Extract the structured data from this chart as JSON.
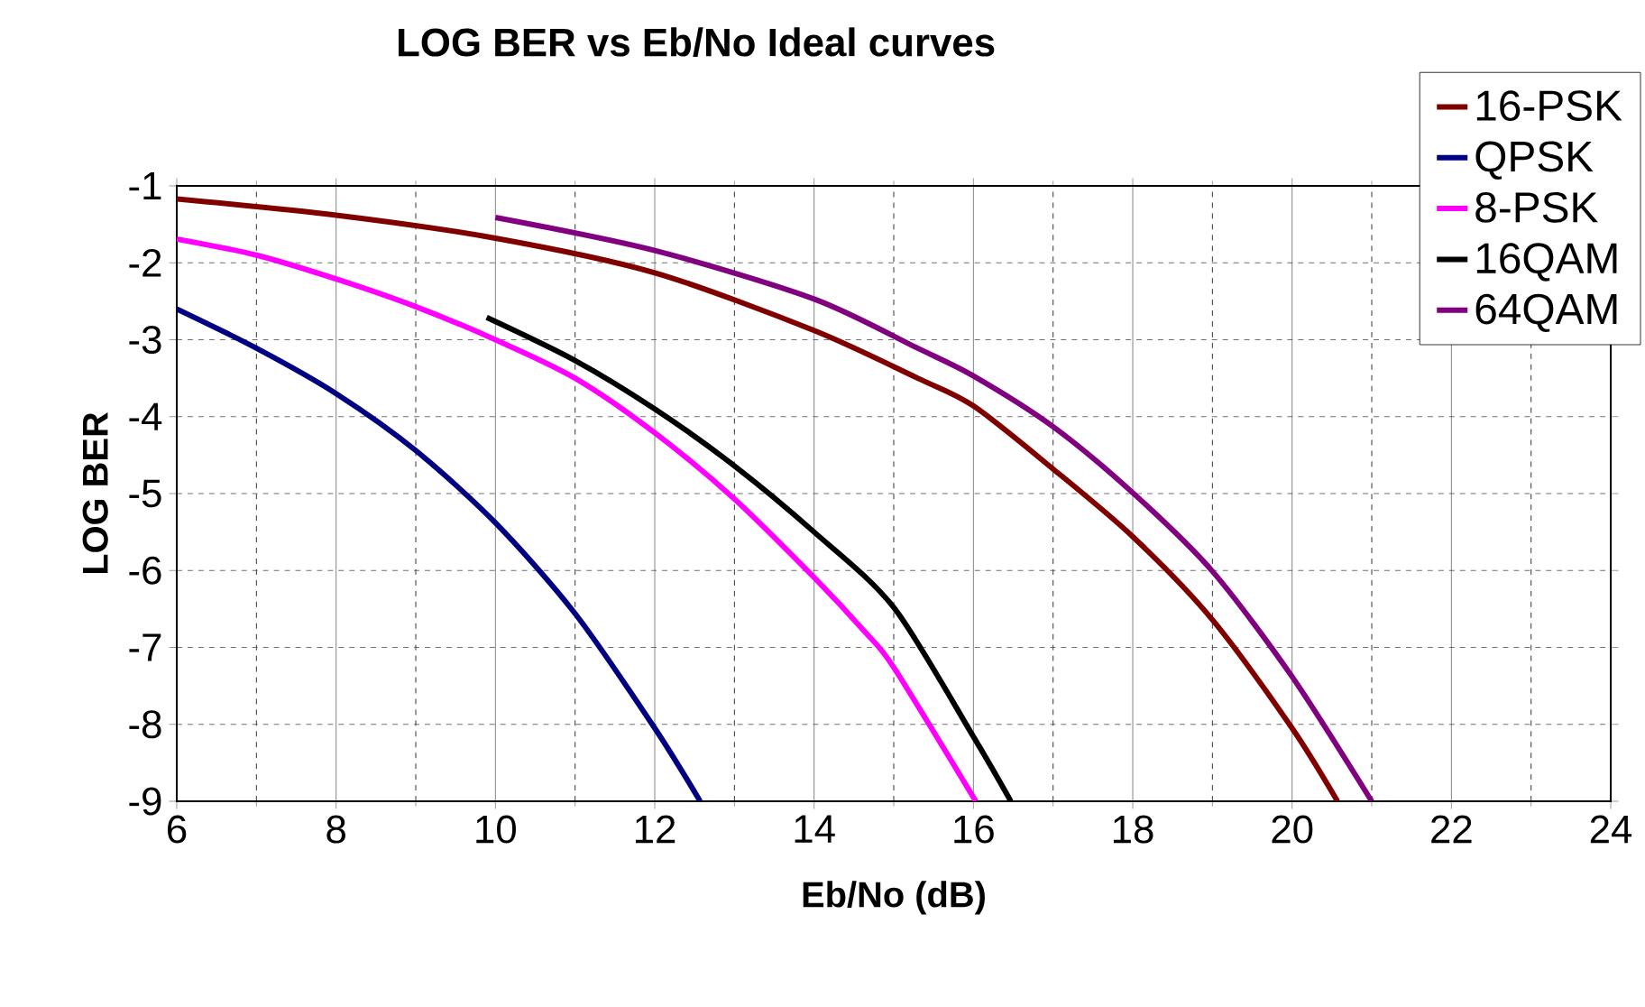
{
  "chart_data": {
    "type": "line",
    "title": "LOG BER vs Eb/No Ideal curves",
    "xlabel": "Eb/No (dB)",
    "ylabel": "LOG BER",
    "xlim": [
      6,
      24
    ],
    "xticks": [
      6,
      8,
      10,
      12,
      14,
      16,
      18,
      20,
      22,
      24
    ],
    "ylim": [
      -9,
      -1
    ],
    "yticks": [
      -9,
      -8,
      -7,
      -6,
      -5,
      -4,
      -3,
      -2,
      -1
    ],
    "grid": true,
    "legend": "top right",
    "marker": "none",
    "line_style": "solid",
    "series": [
      {
        "name": "16-PSK",
        "color": "#800000",
        "x": [
          6,
          8,
          10,
          12,
          14,
          15.3,
          16,
          17,
          18,
          19,
          20,
          20.57
        ],
        "values": [
          -1.17,
          -1.38,
          -1.68,
          -2.13,
          -2.88,
          -3.5,
          -3.86,
          -4.68,
          -5.56,
          -6.64,
          -8.05,
          -9
        ]
      },
      {
        "name": "QPSK",
        "color": "#000080",
        "x": [
          6,
          7,
          8,
          9,
          10,
          11,
          12,
          12.57
        ],
        "values": [
          -2.6,
          -3.11,
          -3.7,
          -4.44,
          -5.38,
          -6.56,
          -8.05,
          -9
        ]
      },
      {
        "name": "8-PSK",
        "color": "#ff00ff",
        "x": [
          6,
          7,
          8,
          9,
          10,
          11,
          12,
          13,
          14,
          14.63,
          15,
          16.03
        ],
        "values": [
          -1.69,
          -1.9,
          -2.21,
          -2.57,
          -3.0,
          -3.5,
          -4.21,
          -5.07,
          -6.09,
          -6.79,
          -7.26,
          -9
        ]
      },
      {
        "name": "16QAM",
        "color": "#000000",
        "x": [
          9.89,
          11,
          12,
          13,
          14,
          15,
          16,
          16.47
        ],
        "values": [
          -2.71,
          -3.27,
          -3.9,
          -4.64,
          -5.5,
          -6.48,
          -8.16,
          -9
        ]
      },
      {
        "name": "64QAM",
        "color": "#800080",
        "x": [
          10,
          12,
          14,
          15.3,
          16,
          17,
          18,
          19,
          20,
          21.0
        ],
        "values": [
          -1.41,
          -1.84,
          -2.47,
          -3.11,
          -3.47,
          -4.13,
          -4.99,
          -6.01,
          -7.38,
          -9
        ]
      }
    ]
  }
}
